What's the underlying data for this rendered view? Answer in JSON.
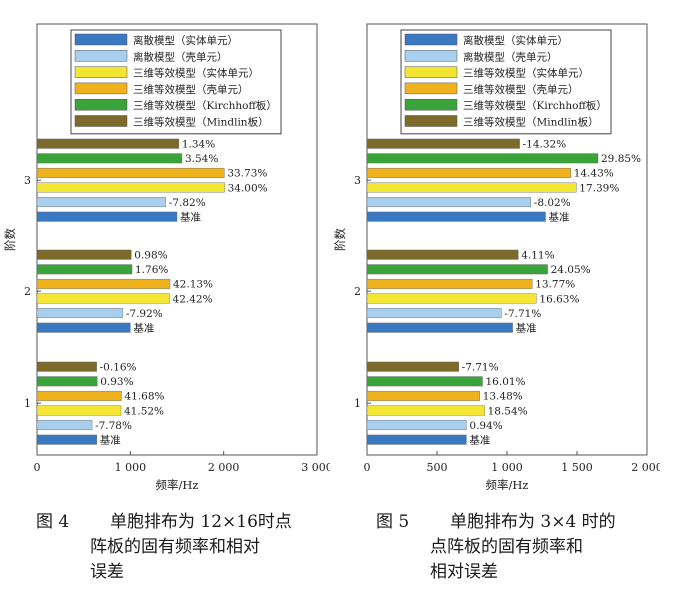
{
  "top_fragment": "...",
  "chart_data": [
    {
      "type": "bar",
      "orientation": "horizontal",
      "categories": [
        "1",
        "2",
        "3"
      ],
      "ylabel": "阶数",
      "xlabel": "频率/Hz",
      "xlim": [
        0,
        3000
      ],
      "xticks": [
        "0",
        "1 000",
        "2 000",
        "3 000"
      ],
      "xtick_values": [
        0,
        1000,
        2000,
        3000
      ],
      "grid": false,
      "legend_position": "top",
      "series": [
        {
          "name": "离散模型（实体单元）",
          "color": "#3a78c2",
          "values": [
            640,
            1000,
            1500
          ],
          "labels": [
            "基准",
            "基准",
            "基准"
          ]
        },
        {
          "name": "离散模型（壳单元）",
          "color": "#a8cfee",
          "values": [
            590,
            920,
            1380
          ],
          "labels": [
            "-7.78%",
            "-7.92%",
            "-7.82%"
          ]
        },
        {
          "name": "三维等效模型（实体单元）",
          "color": "#f2e533",
          "values": [
            900,
            1420,
            2010
          ],
          "labels": [
            "41.52%",
            "42.42%",
            "34.00%"
          ]
        },
        {
          "name": "三维等效模型（壳单元）",
          "color": "#f0b21c",
          "values": [
            905,
            1425,
            2007
          ],
          "labels": [
            "41.68%",
            "42.13%",
            "33.73%"
          ]
        },
        {
          "name": "三维等效模型（Kirchhoff板）",
          "color": "#3aa43a",
          "values": [
            645,
            1018,
            1553
          ],
          "labels": [
            "0.93%",
            "1.76%",
            "3.54%"
          ]
        },
        {
          "name": "三维等效模型（Mindlin板）",
          "color": "#7b6a2a",
          "values": [
            639,
            1010,
            1520
          ],
          "labels": [
            "-0.16%",
            "0.98%",
            "1.34%"
          ]
        }
      ]
    },
    {
      "type": "bar",
      "orientation": "horizontal",
      "categories": [
        "1",
        "2",
        "3"
      ],
      "ylabel": "阶数",
      "xlabel": "频率/Hz",
      "xlim": [
        0,
        2000
      ],
      "xticks": [
        "0",
        "500",
        "1 000",
        "1 500",
        "2 000"
      ],
      "xtick_values": [
        0,
        500,
        1000,
        1500,
        2000
      ],
      "grid": false,
      "legend_position": "top",
      "series": [
        {
          "name": "离散模型（实体单元）",
          "color": "#3a78c2",
          "values": [
            710,
            1040,
            1275
          ],
          "labels": [
            "基准",
            "基准",
            "基准"
          ]
        },
        {
          "name": "离散模型（壳单元）",
          "color": "#a8cfee",
          "values": [
            710,
            960,
            1170
          ],
          "labels": [
            "0.94%",
            "-7.71%",
            "-8.02%"
          ]
        },
        {
          "name": "三维等效模型（实体单元）",
          "color": "#f2e533",
          "values": [
            840,
            1210,
            1495
          ],
          "labels": [
            "18.54%",
            "16.63%",
            "17.39%"
          ]
        },
        {
          "name": "三维等效模型（壳单元）",
          "color": "#f0b21c",
          "values": [
            805,
            1180,
            1455
          ],
          "labels": [
            "13.48%",
            "13.77%",
            "14.43%"
          ]
        },
        {
          "name": "三维等效模型（Kirchhoff板）",
          "color": "#3aa43a",
          "values": [
            825,
            1290,
            1650
          ],
          "labels": [
            "16.01%",
            "24.05%",
            "29.85%"
          ]
        },
        {
          "name": "三维等效模型（Mindlin板）",
          "color": "#7b6a2a",
          "values": [
            655,
            1080,
            1090
          ],
          "labels": [
            "-7.71%",
            "4.11%",
            "-14.32%"
          ]
        }
      ]
    }
  ],
  "captions": [
    {
      "number": "图 4",
      "lines": [
        "单胞排布为 12×16时点",
        "阵板的固有频率和相对",
        "误差"
      ]
    },
    {
      "number": "图 5",
      "lines": [
        "单胞排布为 3×4 时的",
        "点阵板的固有频率和",
        "相对误差"
      ]
    }
  ]
}
